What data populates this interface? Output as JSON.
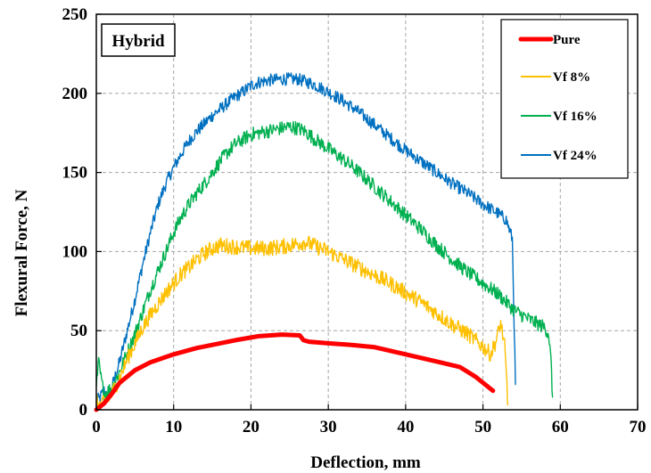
{
  "chart_data": {
    "type": "line",
    "annotation": "Hybrid",
    "xlabel": "Deflection, mm",
    "ylabel": "Flexural Force, N",
    "xlim": [
      0,
      70
    ],
    "ylim": [
      0,
      250
    ],
    "x_ticks": [
      "0",
      "10",
      "20",
      "30",
      "40",
      "50",
      "60",
      "70"
    ],
    "y_ticks": [
      "0",
      "50",
      "100",
      "150",
      "200",
      "250"
    ],
    "grid": true,
    "legend_position": "top-right",
    "series": [
      {
        "name": "Pure",
        "color": "#ff0000",
        "noise": 0,
        "x": [
          0,
          0.5,
          1,
          2,
          3,
          4,
          5,
          7,
          10,
          13,
          15,
          18,
          21,
          24,
          26.3,
          26.8,
          27.5,
          30,
          33,
          36,
          40,
          44,
          47,
          49,
          51.3
        ],
        "y": [
          0,
          2,
          4,
          10,
          17,
          21,
          25,
          30,
          35,
          39,
          41,
          44,
          46.5,
          47.5,
          47,
          44,
          43,
          42,
          41,
          39.5,
          35,
          30.5,
          27,
          21,
          12
        ]
      },
      {
        "name": "Vf 8%",
        "color": "#ffc000",
        "noise": 10,
        "x": [
          0,
          0.5,
          1,
          2,
          3,
          4,
          5,
          6,
          7,
          8,
          9,
          10,
          11,
          12,
          13,
          14,
          15,
          16,
          18,
          20,
          22,
          24,
          26,
          27,
          28,
          30,
          32,
          34,
          36,
          38,
          40,
          42,
          44,
          46,
          48,
          50,
          51,
          51.8,
          52.3,
          52.8,
          53.1,
          53.2
        ],
        "y": [
          5,
          3,
          4,
          10,
          20,
          32,
          42,
          52,
          60,
          67,
          74,
          80,
          86,
          90,
          95,
          99,
          102,
          104,
          103,
          102,
          102,
          103,
          105,
          106,
          104,
          100,
          95,
          90,
          85,
          80,
          74,
          68,
          61,
          54,
          48,
          40,
          35,
          45,
          55,
          40,
          15,
          3
        ]
      },
      {
        "name": "Vf 16%",
        "color": "#00b050",
        "noise": 9,
        "x": [
          0,
          0.3,
          0.6,
          1,
          2,
          3,
          4,
          5,
          6,
          7,
          8,
          9,
          10,
          11,
          12,
          13,
          14,
          15,
          16,
          17,
          18,
          19,
          20,
          22,
          24,
          25,
          26,
          27,
          28,
          30,
          32,
          34,
          36,
          38,
          40,
          42,
          44,
          46,
          48,
          50,
          52,
          54,
          56,
          58,
          58.5,
          58.8,
          59
        ],
        "y": [
          15,
          30,
          20,
          10,
          14,
          24,
          36,
          48,
          62,
          76,
          88,
          100,
          112,
          122,
          130,
          137,
          143,
          150,
          157,
          163,
          168,
          171,
          174,
          176,
          178,
          179,
          178,
          176,
          172,
          165,
          158,
          150,
          141,
          132,
          123,
          114,
          104,
          95,
          87,
          80,
          73,
          63,
          57,
          52,
          48,
          30,
          8
        ]
      },
      {
        "name": "Vf 24%",
        "color": "#0070c0",
        "noise": 8,
        "x": [
          0,
          0.5,
          1,
          1.5,
          2,
          3,
          4,
          5,
          6,
          7,
          8,
          9,
          10,
          11,
          12,
          13,
          14,
          15,
          16,
          17,
          18,
          19,
          20,
          21,
          22,
          24,
          26,
          28,
          30,
          32,
          34,
          36,
          38,
          40,
          42,
          44,
          46,
          48,
          50,
          52,
          53,
          53.8,
          54.2
        ],
        "y": [
          5,
          8,
          12,
          8,
          14,
          30,
          50,
          70,
          92,
          112,
          130,
          143,
          153,
          162,
          170,
          176,
          181,
          186,
          190,
          194,
          198,
          201,
          205,
          207,
          208,
          209,
          209,
          206,
          201,
          195,
          188,
          180,
          172,
          164,
          157,
          150,
          143,
          137,
          130,
          124,
          120,
          108,
          16
        ]
      }
    ]
  }
}
